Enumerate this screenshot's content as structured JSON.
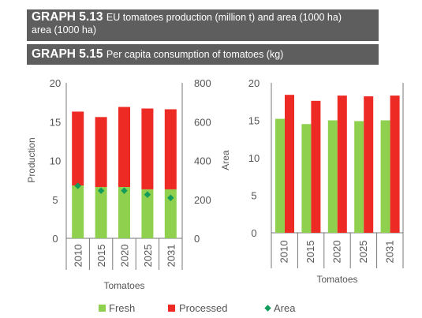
{
  "banners": {
    "graph_513": {
      "number": "GRAPH 5.13",
      "title": "EU tomatoes production (million t) and area (1000 ha)",
      "continuation": "area (1000 ha)"
    },
    "graph_515": {
      "number": "GRAPH 5.15",
      "title": "Per capita consumption of tomatoes (kg)"
    }
  },
  "legend": {
    "fresh": "Fresh",
    "processed": "Processed",
    "area": "Area"
  },
  "colors": {
    "fresh": "#8fd14f",
    "processed": "#ee2a24",
    "area": "#129b5a",
    "banner": "#5e5e5e"
  },
  "chart_data": [
    {
      "type": "bar",
      "stacked": true,
      "categories": [
        "2010",
        "2015",
        "2020",
        "2025",
        "2031"
      ],
      "xlabel": "Tomatoes",
      "ylabel": "Production",
      "ylim": [
        0,
        20
      ],
      "yticks": [
        "20",
        "15",
        "10",
        "5",
        "0"
      ],
      "y2label": "Area",
      "y2lim": [
        0,
        800
      ],
      "y2ticks": [
        "800",
        "600",
        "400",
        "200",
        "0"
      ],
      "series": [
        {
          "name": "Fresh",
          "values": [
            6.8,
            6.6,
            6.6,
            6.3,
            6.3
          ]
        },
        {
          "name": "Processed",
          "values": [
            9.5,
            9.0,
            10.3,
            10.4,
            10.3
          ]
        },
        {
          "name": "Area",
          "axis": "secondary",
          "values": [
            270,
            245,
            245,
            225,
            208
          ]
        }
      ]
    },
    {
      "type": "bar",
      "categories": [
        "2010",
        "2015",
        "2020",
        "2025",
        "2031"
      ],
      "xlabel": "Tomatoes",
      "ylim": [
        0,
        20
      ],
      "yticks": [
        "20",
        "15",
        "10",
        "5",
        "0"
      ],
      "series": [
        {
          "name": "Fresh",
          "values": [
            15.2,
            14.5,
            15.0,
            14.9,
            15.0
          ]
        },
        {
          "name": "Processed",
          "values": [
            18.4,
            17.6,
            18.3,
            18.2,
            18.3
          ]
        }
      ]
    }
  ]
}
